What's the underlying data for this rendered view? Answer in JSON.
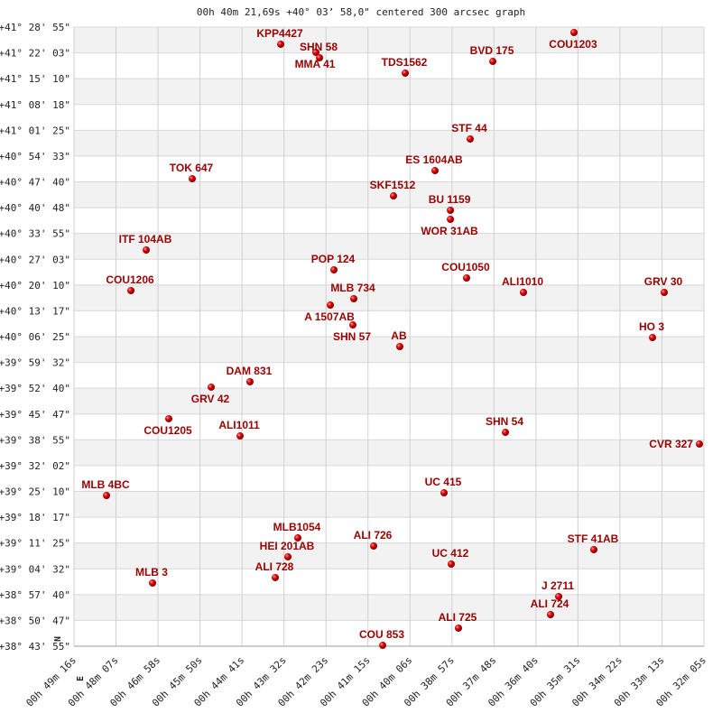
{
  "chart_data": {
    "type": "scatter",
    "title": "00h 40m 21,69s +40° 03’ 58,0\" centered 300 arcsec graph",
    "xlabel": "",
    "ylabel": "",
    "x_unit": "RA seconds of time",
    "y_unit": "Dec degrees",
    "xlim": [
      2956,
      1925
    ],
    "ylim": [
      38.7319,
      41.4819
    ],
    "x_reversed": true,
    "grid": true,
    "band_colors": [
      "#f2f2f2",
      "#ffffff"
    ],
    "point_color": "#dd0000",
    "label_color": "#990000",
    "direction_labels": {
      "north": "N",
      "east": "E"
    },
    "x_ticks": [
      "00h 49m 16s",
      "00h 48m 07s",
      "00h 46m 58s",
      "00h 45m 50s",
      "00h 44m 41s",
      "00h 43m 32s",
      "00h 42m 23s",
      "00h 41m 15s",
      "00h 40m 06s",
      "00h 38m 57s",
      "00h 37m 48s",
      "00h 36m 40s",
      "00h 35m 31s",
      "00h 34m 22s",
      "00h 33m 13s",
      "00h 32m 05s"
    ],
    "y_ticks": [
      "+41° 28' 55\"",
      "+41° 22' 03\"",
      "+41° 15' 10\"",
      "+41° 08' 18\"",
      "+41° 01' 25\"",
      "+40° 54' 33\"",
      "+40° 47' 40\"",
      "+40° 40' 48\"",
      "+40° 33' 55\"",
      "+40° 27' 03\"",
      "+40° 20' 10\"",
      "+40° 13' 17\"",
      "+40° 06' 25\"",
      "+39° 59' 32\"",
      "+39° 52' 40\"",
      "+39° 45' 47\"",
      "+39° 38' 55\"",
      "+39° 32' 02\"",
      "+39° 25' 10\"",
      "+39° 18' 17\"",
      "+39° 11' 25\"",
      "+39° 04' 32\"",
      "+38° 57' 40\"",
      "+38° 50' 47\"",
      "+38° 43' 55\""
    ],
    "points": [
      {
        "name": "COU1203",
        "ra_s": 2137.7,
        "dec": 41.4578
      },
      {
        "name": "KPP4427",
        "ra_s": 2617.7,
        "dec": 41.4056
      },
      {
        "name": "MMA  41",
        "ra_s": 2560.1,
        "dec": 41.3697
      },
      {
        "name": "SHN  58",
        "ra_s": 2554.2,
        "dec": 41.3456
      },
      {
        "name": "TDS1562",
        "ra_s": 2413.9,
        "dec": 41.2775
      },
      {
        "name": "BVD 175",
        "ra_s": 2270.6,
        "dec": 41.3294
      },
      {
        "name": "STF  44",
        "ra_s": 2307.6,
        "dec": 40.9847
      },
      {
        "name": "ES 1604AB",
        "ra_s": 2365.2,
        "dec": 40.8444
      },
      {
        "name": "TOK 647",
        "ra_s": 2762.5,
        "dec": 40.8083
      },
      {
        "name": "SKF1512",
        "ra_s": 2433.1,
        "dec": 40.7322
      },
      {
        "name": "BU 1159",
        "ra_s": 2340.0,
        "dec": 40.6681
      },
      {
        "name": "WOR  31AB",
        "ra_s": 2340.0,
        "dec": 40.6281
      },
      {
        "name": "ITF 104AB",
        "ra_s": 2837.8,
        "dec": 40.4917
      },
      {
        "name": "POP 124",
        "ra_s": 2530.6,
        "dec": 40.4036
      },
      {
        "name": "COU1050",
        "ra_s": 2313.5,
        "dec": 40.3675
      },
      {
        "name": "ALI1010",
        "ra_s": 2220.4,
        "dec": 40.3033
      },
      {
        "name": "GRV  30",
        "ra_s": 1990.0,
        "dec": 40.3033
      },
      {
        "name": "COU1206",
        "ra_s": 2862.9,
        "dec": 40.3114
      },
      {
        "name": "MLB 734",
        "ra_s": 2498.1,
        "dec": 40.2753
      },
      {
        "name": "A  1507AB",
        "ra_s": 2536.5,
        "dec": 40.2472
      },
      {
        "name": "SHN  57",
        "ra_s": 2499.6,
        "dec": 40.1589
      },
      {
        "name": "HO    3",
        "ra_s": 2009.2,
        "dec": 40.1028
      },
      {
        "name": "AB",
        "ra_s": 2422.8,
        "dec": 40.0628
      },
      {
        "name": "DAM 831",
        "ra_s": 2668.0,
        "dec": 39.9064
      },
      {
        "name": "GRV  42",
        "ra_s": 2731.5,
        "dec": 39.8825
      },
      {
        "name": "COU1205",
        "ra_s": 2800.9,
        "dec": 39.7422
      },
      {
        "name": "ALI1011",
        "ra_s": 2684.2,
        "dec": 39.6658
      },
      {
        "name": "SHN  54",
        "ra_s": 2249.9,
        "dec": 39.6819
      },
      {
        "name": "CVR 327",
        "ra_s": 1932.4,
        "dec": 39.63
      },
      {
        "name": "MLB   4BC",
        "ra_s": 2902.8,
        "dec": 39.4014
      },
      {
        "name": "UC   415",
        "ra_s": 2350.4,
        "dec": 39.4133
      },
      {
        "name": "MLB1054",
        "ra_s": 2589.7,
        "dec": 39.2131
      },
      {
        "name": "ALI 726",
        "ra_s": 2465.6,
        "dec": 39.1769
      },
      {
        "name": "STF  41AB",
        "ra_s": 2105.2,
        "dec": 39.1608
      },
      {
        "name": "HEI 201AB",
        "ra_s": 2605.9,
        "dec": 39.1289
      },
      {
        "name": "UC   412",
        "ra_s": 2338.6,
        "dec": 39.0967
      },
      {
        "name": "ALI 728",
        "ra_s": 2626.6,
        "dec": 39.0367
      },
      {
        "name": "MLB    3",
        "ra_s": 2827.5,
        "dec": 39.0125
      },
      {
        "name": "J  2711",
        "ra_s": 2162.8,
        "dec": 38.9525
      },
      {
        "name": "ALI 724",
        "ra_s": 2176.1,
        "dec": 38.8722
      },
      {
        "name": "ALI 725",
        "ra_s": 2326.8,
        "dec": 38.8122
      },
      {
        "name": "COU 853",
        "ra_s": 2450.8,
        "dec": 38.7358
      }
    ]
  }
}
